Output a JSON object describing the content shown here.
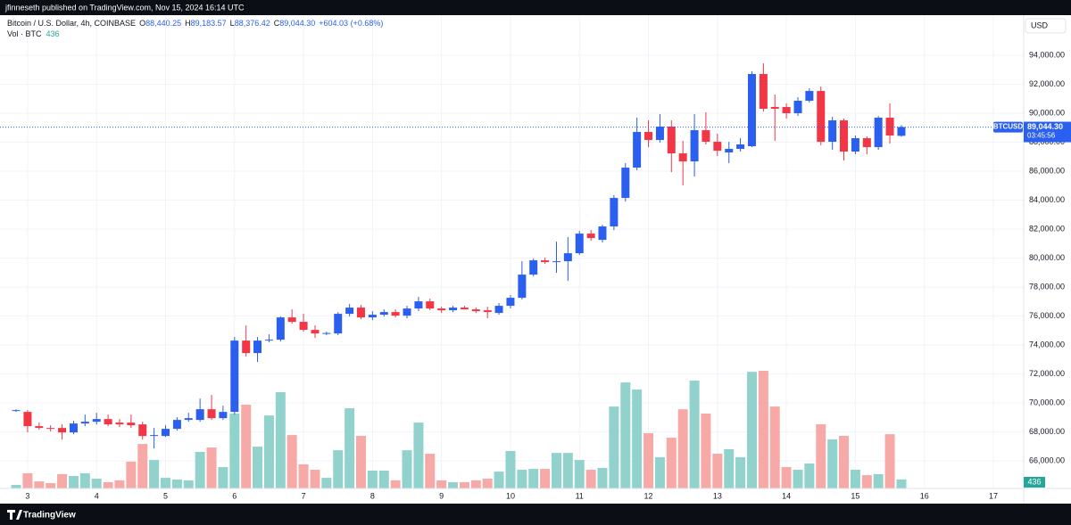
{
  "chart_data": {
    "type": "candlestick",
    "published": "jfinneseth published on TradingView.com, Nov 15, 2024 16:14 UTC",
    "brand": "TradingView",
    "currency": "USD",
    "symbol": "BTCUSD",
    "last_price_label": "89,044.30",
    "countdown": "03:45:56",
    "legend": {
      "title": "Bitcoin / U.S. Dollar, 4h, COINBASE",
      "items": [
        {
          "key": "O",
          "text": "88,440.25"
        },
        {
          "key": "H",
          "text": "89,183.57"
        },
        {
          "key": "L",
          "text": "88,376.42"
        },
        {
          "key": "C",
          "text": "89,044.30"
        }
      ],
      "change": "+604.03 (+0.68%)",
      "volume_title": "Vol · BTC"
    },
    "up_color": "#2a5ff0",
    "down_color": "#f23645",
    "grid": true,
    "xlim": [
      2.6,
      17.44
    ],
    "xticks": [
      3,
      4,
      5,
      6,
      7,
      8,
      9,
      10,
      11,
      12,
      13,
      14,
      15,
      16,
      17
    ],
    "ylim": [
      64100,
      96770
    ],
    "yticks": [
      {
        "value": 66000,
        "label": "66,000.00"
      },
      {
        "value": 68000,
        "label": "68,000.00"
      },
      {
        "value": 70000,
        "label": "70,000.00"
      },
      {
        "value": 72000,
        "label": "72,000.00"
      },
      {
        "value": 74000,
        "label": "74,000.00"
      },
      {
        "value": 76000,
        "label": "76,000.00"
      },
      {
        "value": 78000,
        "label": "78,000.00"
      },
      {
        "value": 80000,
        "label": "80,000.00"
      },
      {
        "value": 82000,
        "label": "82,000.00"
      },
      {
        "value": 84000,
        "label": "84,000.00"
      },
      {
        "value": 86000,
        "label": "86,000.00"
      },
      {
        "value": 88000,
        "label": "88,000.00"
      },
      {
        "value": 90000,
        "label": "90,000.00"
      },
      {
        "value": 92000,
        "label": "92,000.00"
      },
      {
        "value": 94000,
        "label": "94,000.00"
      }
    ],
    "x": [
      2.833,
      3,
      3.167,
      3.333,
      3.5,
      3.667,
      3.833,
      4,
      4.167,
      4.333,
      4.5,
      4.667,
      4.833,
      5,
      5.167,
      5.333,
      5.5,
      5.667,
      5.833,
      6,
      6.167,
      6.333,
      6.5,
      6.667,
      6.833,
      7,
      7.167,
      7.333,
      7.5,
      7.667,
      7.833,
      8,
      8.167,
      8.333,
      8.5,
      8.667,
      8.833,
      9,
      9.167,
      9.333,
      9.5,
      9.667,
      9.833,
      10,
      10.167,
      10.333,
      10.5,
      10.667,
      10.833,
      11,
      11.167,
      11.333,
      11.5,
      11.667,
      11.833,
      12,
      12.167,
      12.333,
      12.5,
      12.667,
      12.833,
      13,
      13.167,
      13.333,
      13.5,
      13.667,
      13.833,
      14,
      14.167,
      14.333,
      14.5,
      14.667,
      14.833,
      15,
      15.167,
      15.333,
      15.5,
      15.667
    ],
    "open": [
      69445,
      69383,
      68400,
      68276,
      68276,
      67969,
      68584,
      68707,
      68892,
      68646,
      68646,
      68523,
      67722,
      67722,
      68215,
      68830,
      68830,
      69568,
      68953,
      69383,
      74307,
      73445,
      74307,
      74368,
      75907,
      75600,
      75045,
      74799,
      74799,
      76153,
      76584,
      75907,
      76092,
      76276,
      76030,
      76522,
      77015,
      76522,
      76399,
      76584,
      76461,
      76399,
      76215,
      76707,
      77261,
      78861,
      79846,
      79722,
      79784,
      80338,
      81692,
      81261,
      82184,
      84153,
      86246,
      88707,
      88153,
      89076,
      87230,
      86676,
      88830,
      88030,
      87292,
      87538,
      87723,
      92707,
      90430,
      90430,
      90000,
      90861,
      91538,
      88030,
      89507,
      87353,
      88277,
      87661,
      89692,
      88440.25
    ],
    "high": [
      69568,
      69506,
      68646,
      68461,
      68523,
      68769,
      69200,
      69322,
      69200,
      68892,
      69200,
      68707,
      68276,
      68461,
      69014,
      69322,
      70306,
      70553,
      69815,
      74553,
      75353,
      74553,
      74738,
      75969,
      76461,
      76153,
      75353,
      74922,
      76276,
      76830,
      76768,
      76338,
      76461,
      76461,
      76707,
      77323,
      77200,
      76645,
      76707,
      76707,
      76584,
      76645,
      76892,
      77445,
      79784,
      79969,
      80031,
      81138,
      81446,
      81877,
      81938,
      82307,
      84338,
      86554,
      89692,
      89507,
      89938,
      89507,
      88092,
      89938,
      90061,
      88584,
      88030,
      88277,
      92892,
      93446,
      91292,
      90676,
      91107,
      91723,
      91846,
      89753,
      89630,
      88461,
      88400,
      89815,
      90676,
      89183.57
    ],
    "low": [
      69383,
      67969,
      68153,
      68030,
      67476,
      67846,
      68400,
      68523,
      68400,
      68338,
      68276,
      67476,
      66861,
      67661,
      68092,
      68707,
      68707,
      68830,
      68830,
      69200,
      73199,
      72830,
      74184,
      74245,
      75476,
      74922,
      74492,
      74676,
      74676,
      75969,
      75784,
      75722,
      75969,
      75907,
      75846,
      76338,
      76399,
      76215,
      76276,
      76461,
      76215,
      75846,
      76092,
      76522,
      77138,
      78738,
      79599,
      78984,
      78430,
      80215,
      81199,
      81076,
      81938,
      83907,
      86061,
      87661,
      87969,
      85938,
      85015,
      85630,
      87846,
      87045,
      86554,
      87353,
      87661,
      90122,
      88092,
      89630,
      89815,
      90738,
      87784,
      87476,
      86738,
      87169,
      87169,
      87476,
      87907,
      88376.42
    ],
    "close": [
      69506,
      68400,
      68276,
      68215,
      67969,
      68584,
      68707,
      68892,
      68523,
      68523,
      68461,
      67722,
      67784,
      68215,
      68830,
      68953,
      69568,
      68953,
      69383,
      74307,
      73445,
      74307,
      74368,
      75907,
      75600,
      75045,
      74799,
      74830,
      76153,
      76584,
      75907,
      76092,
      76276,
      76030,
      76522,
      77015,
      76522,
      76399,
      76584,
      76461,
      76338,
      76276,
      76707,
      77261,
      78861,
      79846,
      79722,
      79784,
      80338,
      81692,
      81384,
      82184,
      84153,
      86246,
      88707,
      88153,
      89076,
      87230,
      86676,
      88830,
      88030,
      87415,
      87538,
      87846,
      92707,
      90307,
      90307,
      90000,
      90861,
      91538,
      88030,
      89507,
      87353,
      88277,
      87661,
      89692,
      88461,
      89044.3
    ],
    "volume": {
      "up_color": "#92d2cc",
      "down_color": "#f7a9a7",
      "values": [
        170,
        730,
        340,
        260,
        690,
        600,
        730,
        470,
        300,
        390,
        1290,
        2140,
        1370,
        510,
        430,
        390,
        1760,
        1970,
        1030,
        3600,
        4030,
        2010,
        3510,
        4630,
        2570,
        1160,
        900,
        510,
        1840,
        3860,
        2530,
        860,
        860,
        390,
        1840,
        3170,
        1670,
        390,
        300,
        300,
        390,
        470,
        810,
        1800,
        900,
        940,
        940,
        1710,
        1710,
        1370,
        900,
        990,
        3940,
        5100,
        4760,
        2660,
        1500,
        2440,
        3810,
        5190,
        3600,
        1670,
        1890,
        1500,
        5610,
        5660,
        3940,
        1030,
        900,
        1200,
        3090,
        2360,
        2530,
        900,
        640,
        690,
        2610,
        436
      ]
    }
  }
}
